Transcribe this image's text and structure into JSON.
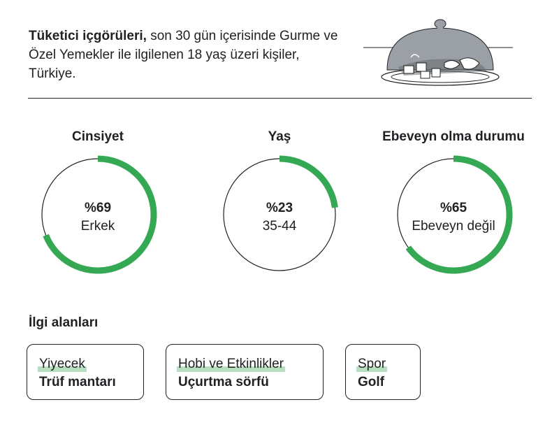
{
  "header": {
    "title_bold": "Tüketici içgörüleri,",
    "title_rest": " son 30 gün içerisinde Gurme ve Özel Yemekler ile ilgilenen 18 yaş üzeri kişiler, Türkiye."
  },
  "colors": {
    "accent": "#34a853",
    "text": "#202124",
    "highlight": "#b7dfbf"
  },
  "icon": "cloche-dish-icon",
  "chart_data": [
    {
      "type": "pie",
      "title": "Cinsiyet",
      "value": 69,
      "value_label": "%69",
      "label": "Erkek"
    },
    {
      "type": "pie",
      "title": "Yaş",
      "value": 23,
      "value_label": "%23",
      "label": "35-44"
    },
    {
      "type": "pie",
      "title": "Ebeveyn olma durumu",
      "value": 65,
      "value_label": "%65",
      "label": "Ebeveyn değil"
    }
  ],
  "interests": {
    "title": "İlgi alanları",
    "cards": [
      {
        "category": "Yiyecek",
        "value": "Trüf mantarı"
      },
      {
        "category": "Hobi ve Etkinlikler",
        "value": "Uçurtma sörfü"
      },
      {
        "category": "Spor",
        "value": "Golf"
      }
    ]
  }
}
